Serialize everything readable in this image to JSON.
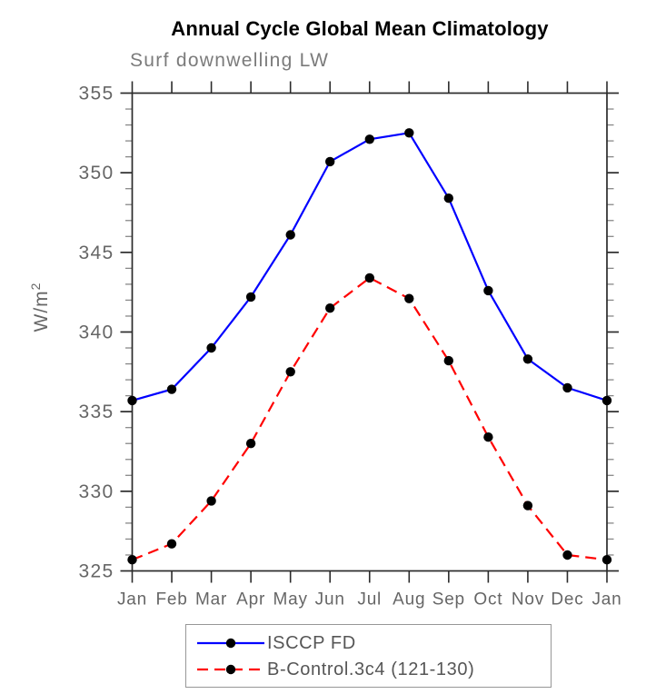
{
  "chart_data": {
    "type": "line",
    "title": "Annual Cycle Global Mean Climatology",
    "subtitle": "Surf downwelling LW",
    "ylabel_base": "W/m",
    "ylabel_exponent": "2",
    "x_categories": [
      "Jan",
      "Feb",
      "Mar",
      "Apr",
      "May",
      "Jun",
      "Jul",
      "Aug",
      "Sep",
      "Oct",
      "Nov",
      "Dec",
      "Jan"
    ],
    "ylim": [
      325,
      355
    ],
    "y_major_step": 5,
    "y_minor_step": 1,
    "y_tick_labels": [
      "325",
      "330",
      "335",
      "340",
      "345",
      "350",
      "355"
    ],
    "grid": false,
    "legend_position": "bottom-center",
    "axis_color": "#2b2b2b",
    "tick_label_color": "#666666",
    "series": [
      {
        "name": "ISCCP FD",
        "color": "#0000ff",
        "line_style": "solid",
        "marker": "filled-circle",
        "marker_color": "#000000",
        "values": [
          335.7,
          336.4,
          339.0,
          342.2,
          346.1,
          350.7,
          352.1,
          352.5,
          348.4,
          342.6,
          338.3,
          336.5,
          335.7
        ]
      },
      {
        "name": "B-Control.3c4 (121-130)",
        "color": "#ff0000",
        "line_style": "dashed",
        "marker": "filled-circle",
        "marker_color": "#000000",
        "values": [
          325.7,
          326.7,
          329.4,
          333.0,
          337.5,
          341.5,
          343.4,
          342.1,
          338.2,
          333.4,
          329.1,
          326.0,
          325.7
        ]
      }
    ]
  }
}
